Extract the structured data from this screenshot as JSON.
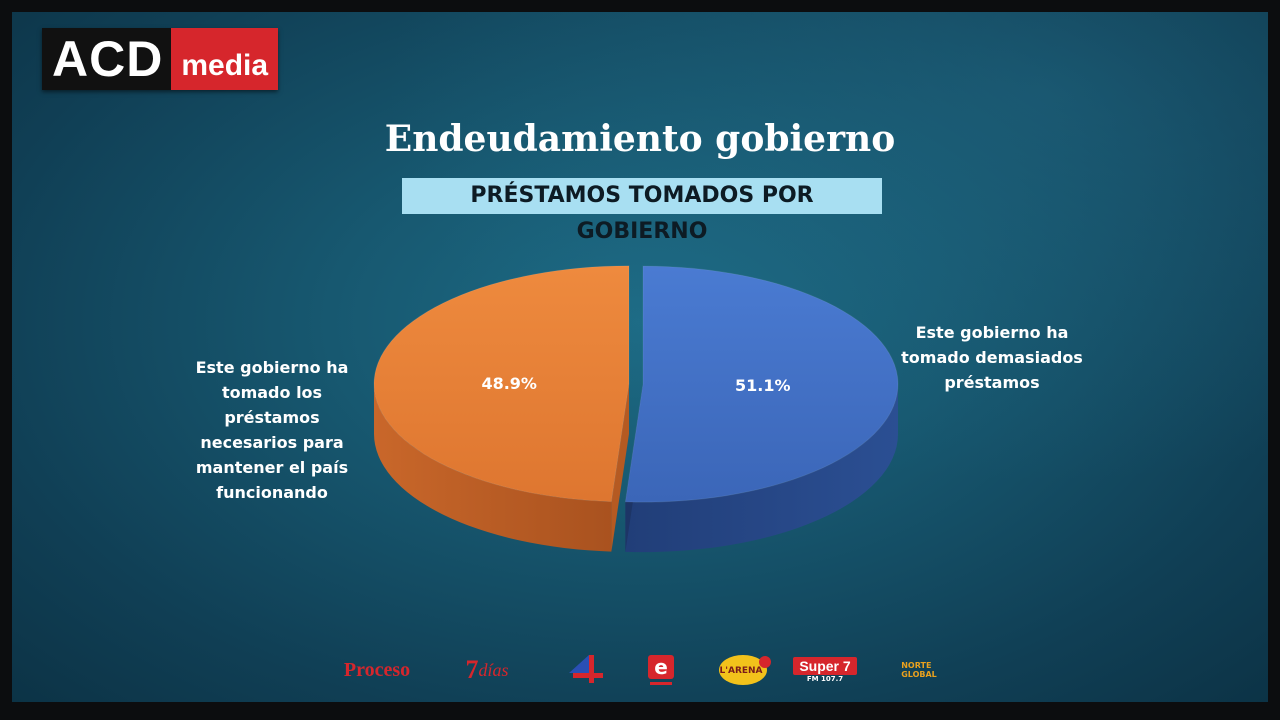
{
  "logo": {
    "part1": "ACD",
    "part2": "media"
  },
  "chart_data": {
    "type": "pie",
    "title": "Endeudamiento gobierno",
    "subtitle": "PRÉSTAMOS TOMADOS POR GOBIERNO",
    "slices": [
      {
        "label": "Este gobierno ha tomado demasiados préstamos",
        "value": 51.1,
        "display": "51.1%",
        "color": "#4270c4"
      },
      {
        "label": "Este gobierno ha tomado los préstamos necesarios para mantener el país funcionando",
        "value": 48.9,
        "display": "48.9%",
        "color": "#e77e33"
      }
    ]
  },
  "labels": {
    "left_lines": [
      "Este gobierno ha",
      "tomado los préstamos",
      "necesarios para",
      "mantener el país",
      "funcionando"
    ],
    "right_lines": [
      "Este gobierno ha",
      "tomado demasiados",
      "préstamos"
    ]
  },
  "sponsors": {
    "proceso": "Proceso",
    "siete_dias_num": "7",
    "siete_dias_word": "días",
    "e_letter": "e",
    "super": "Super",
    "super_num": "7",
    "super_fm": "FM 107.7",
    "arena": "L'ARENA",
    "global_line1": "NORTE",
    "global_line2": "GLOBAL"
  }
}
